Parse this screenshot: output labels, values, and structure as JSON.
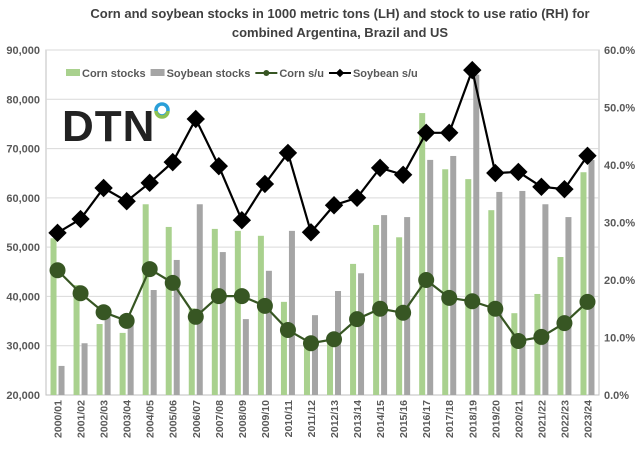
{
  "logo": {
    "text": "DTN"
  },
  "chart_data": {
    "type": "bar+line",
    "title": "Corn and soybean stocks in 1000 metric tons (LH) and stock to use ratio (RH) for combined Argentina, Brazil and US",
    "title_lines": [
      "Corn and soybean stocks in 1000 metric tons (LH) and stock to use ratio (RH) for",
      "combined Argentina, Brazil and US"
    ],
    "legend_placement": "top-left",
    "grid": true,
    "categories": [
      "2000/01",
      "2001/02",
      "2002/03",
      "2003/04",
      "2004/05",
      "2005/06",
      "2006/07",
      "2007/08",
      "2008/09",
      "2009/10",
      "2010/11",
      "2011/12",
      "2012/13",
      "2013/14",
      "2014/15",
      "2015/16",
      "2016/17",
      "2017/18",
      "2018/19",
      "2019/20",
      "2020/21",
      "2021/22",
      "2022/23",
      "2023/24"
    ],
    "left_axis": {
      "min": 20000,
      "max": 90000,
      "step": 10000,
      "ticks": [
        "20,000",
        "30,000",
        "40,000",
        "50,000",
        "60,000",
        "70,000",
        "80,000",
        "90,000"
      ]
    },
    "right_axis": {
      "min": 0,
      "max": 60,
      "step": 10,
      "ticks": [
        "0.0%",
        "10.0%",
        "20.0%",
        "30.0%",
        "40.0%",
        "50.0%",
        "60.0%"
      ]
    },
    "series": [
      {
        "name": "Corn stocks",
        "kind": "bar",
        "axis": "left",
        "color": "#a9d18e",
        "values": [
          51800,
          42300,
          34400,
          32600,
          58700,
          54100,
          37600,
          53700,
          53300,
          52300,
          38900,
          31000,
          31500,
          46600,
          54500,
          52000,
          77200,
          65800,
          63800,
          57500,
          36600,
          40500,
          48000,
          65200
        ]
      },
      {
        "name": "Soybean stocks",
        "kind": "bar",
        "axis": "left",
        "color": "#a5a5a5",
        "values": [
          25900,
          30500,
          35800,
          34600,
          41300,
          47400,
          58700,
          49000,
          35400,
          45200,
          53300,
          36200,
          41100,
          44700,
          56500,
          56100,
          67700,
          68500,
          85000,
          61200,
          61400,
          58700,
          56100,
          67700
        ]
      },
      {
        "name": "Corn s/u",
        "kind": "line",
        "axis": "right",
        "color": "#375623",
        "marker": "circle",
        "values": [
          21.7,
          17.7,
          14.4,
          12.9,
          21.9,
          19.5,
          13.6,
          17.2,
          17.2,
          15.5,
          11.3,
          9.0,
          9.7,
          13.2,
          15.0,
          14.3,
          20.0,
          16.9,
          16.3,
          15.0,
          9.4,
          10.1,
          12.5,
          16.2
        ]
      },
      {
        "name": "Soybean s/u",
        "kind": "line",
        "axis": "right",
        "color": "#000000",
        "marker": "diamond",
        "values": [
          28.2,
          30.6,
          36.0,
          33.7,
          36.9,
          40.5,
          48.0,
          39.8,
          30.4,
          36.7,
          42.1,
          28.3,
          33.0,
          34.3,
          39.5,
          38.3,
          45.6,
          45.6,
          56.5,
          38.6,
          38.8,
          36.2,
          35.8,
          41.6
        ]
      }
    ]
  }
}
